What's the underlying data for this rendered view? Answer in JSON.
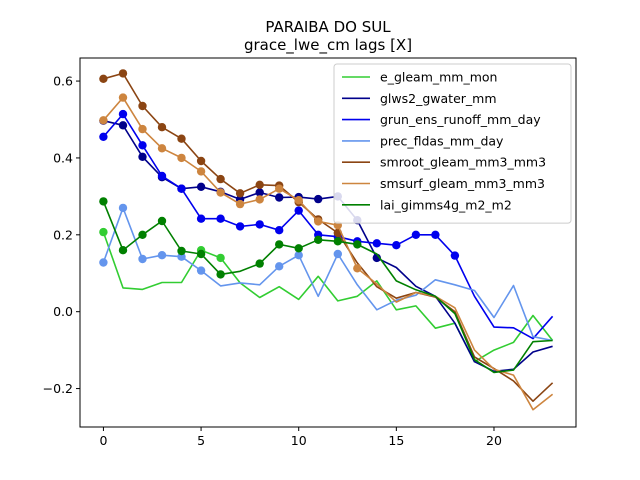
{
  "chart_data": {
    "type": "line",
    "title": "PARAIBA DO SUL",
    "subtitle": "grace_lwe_cm lags [X]",
    "xlabel": "",
    "ylabel": "",
    "xlim": [
      -1.2,
      24.2
    ],
    "ylim": [
      -0.3,
      0.66
    ],
    "xticks": [
      0,
      5,
      10,
      15,
      20
    ],
    "yticks": [
      -0.2,
      0.0,
      0.2,
      0.4,
      0.6
    ],
    "ytick_labels": [
      "−0.2",
      "0.0",
      "0.2",
      "0.4",
      "0.6"
    ],
    "grid": false,
    "legend_position": "top-right",
    "x": [
      0,
      1,
      2,
      3,
      4,
      5,
      6,
      7,
      8,
      9,
      10,
      11,
      12,
      13,
      14,
      15,
      16,
      17,
      18,
      19,
      20,
      21,
      22,
      23
    ],
    "series": [
      {
        "name": "e_gleam_mm_mon",
        "color": "#32cd32",
        "values": [
          0.207,
          0.062,
          0.058,
          0.076,
          0.076,
          0.16,
          0.14,
          0.075,
          0.037,
          0.065,
          0.032,
          0.092,
          0.028,
          0.04,
          0.08,
          0.005,
          0.015,
          -0.043,
          -0.03,
          -0.13,
          -0.1,
          -0.08,
          -0.01,
          -0.075
        ],
        "markers": [
          0,
          5,
          6
        ]
      },
      {
        "name": "glws2_gwater_mm",
        "color": "#00008b",
        "values": [
          0.497,
          0.485,
          0.403,
          0.35,
          0.32,
          0.325,
          0.312,
          0.292,
          0.31,
          0.297,
          0.298,
          0.293,
          0.3,
          0.238,
          0.14,
          0.115,
          0.066,
          0.04,
          -0.03,
          -0.13,
          -0.155,
          -0.15,
          -0.105,
          -0.09
        ],
        "markers": [
          0,
          1,
          2,
          3,
          4,
          5,
          6,
          7,
          8,
          9,
          10,
          11,
          12,
          13,
          14
        ]
      },
      {
        "name": "grun_ens_runoff_mm_day",
        "color": "#0000ee",
        "values": [
          0.455,
          0.514,
          0.433,
          0.353,
          0.32,
          0.242,
          0.242,
          0.222,
          0.227,
          0.212,
          0.263,
          0.2,
          0.195,
          0.183,
          0.178,
          0.173,
          0.2,
          0.2,
          0.146,
          0.04,
          -0.04,
          -0.042,
          -0.07,
          -0.012
        ],
        "markers": [
          0,
          1,
          2,
          3,
          4,
          5,
          6,
          7,
          8,
          9,
          10,
          11,
          12,
          13,
          14,
          15,
          16,
          17,
          18
        ]
      },
      {
        "name": "prec_fldas_mm_day",
        "color": "#6495ed",
        "values": [
          0.128,
          0.27,
          0.137,
          0.147,
          0.143,
          0.107,
          0.067,
          0.075,
          0.07,
          0.118,
          0.147,
          0.04,
          0.15,
          0.07,
          0.005,
          0.03,
          0.043,
          0.083,
          0.07,
          0.055,
          -0.015,
          0.068,
          -0.065,
          -0.075
        ],
        "markers": [
          0,
          1,
          2,
          3,
          4,
          5,
          9,
          10,
          12
        ]
      },
      {
        "name": "smroot_gleam_mm3_mm3",
        "color": "#8b4513",
        "values": [
          0.606,
          0.62,
          0.535,
          0.48,
          0.45,
          0.392,
          0.345,
          0.308,
          0.33,
          0.328,
          0.285,
          0.24,
          0.205,
          0.127,
          0.065,
          0.035,
          0.05,
          0.038,
          0.0,
          -0.118,
          -0.148,
          -0.18,
          -0.233,
          -0.185
        ],
        "markers": [
          0,
          1,
          2,
          3,
          4,
          5,
          6,
          7,
          8,
          9,
          10,
          11,
          12
        ]
      },
      {
        "name": "smsurf_gleam_mm3_mm3",
        "color": "#cd853f",
        "values": [
          0.498,
          0.557,
          0.475,
          0.425,
          0.4,
          0.365,
          0.31,
          0.28,
          0.292,
          0.32,
          0.29,
          0.235,
          0.225,
          0.113,
          0.072,
          0.025,
          0.05,
          0.04,
          0.01,
          -0.1,
          -0.15,
          -0.165,
          -0.255,
          -0.215
        ],
        "markers": [
          0,
          1,
          2,
          3,
          4,
          5,
          6,
          7,
          8,
          9,
          10,
          11,
          12,
          13
        ]
      },
      {
        "name": "lai_gimms4g_m2_m2",
        "color": "#008000",
        "values": [
          0.287,
          0.16,
          0.2,
          0.236,
          0.158,
          0.15,
          0.097,
          0.105,
          0.125,
          0.175,
          0.165,
          0.187,
          0.183,
          0.175,
          0.15,
          0.08,
          0.057,
          0.04,
          -0.005,
          -0.125,
          -0.158,
          -0.152,
          -0.078,
          -0.075
        ],
        "markers": [
          0,
          1,
          2,
          3,
          4,
          5,
          6,
          8,
          9,
          10,
          11,
          12,
          13
        ]
      }
    ]
  }
}
